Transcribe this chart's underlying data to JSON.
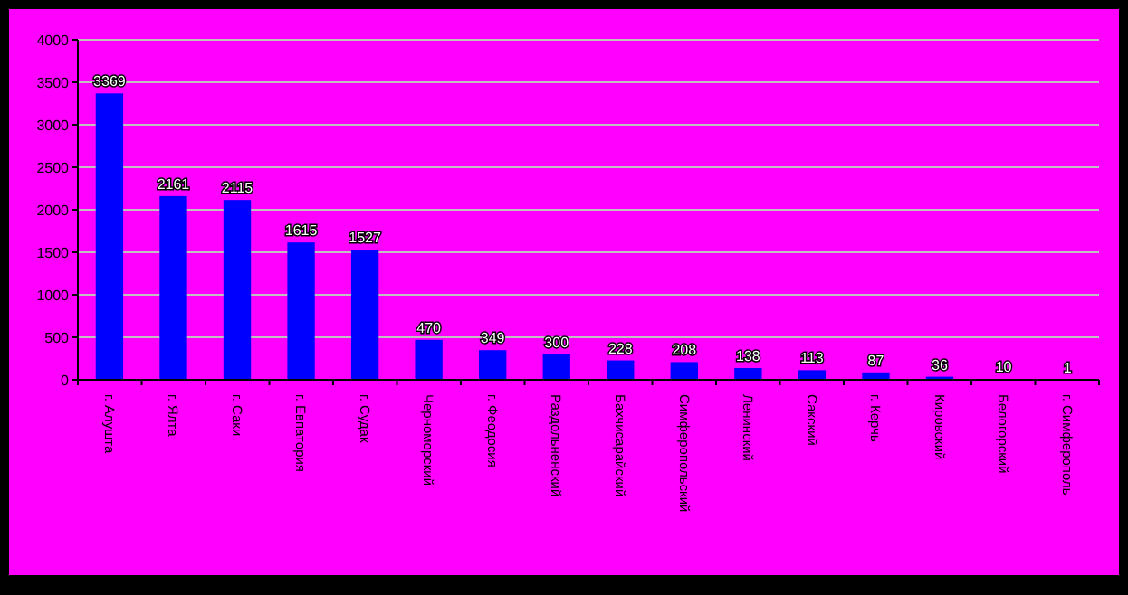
{
  "chart_data": {
    "type": "bar",
    "categories": [
      "г. Алушта",
      "г. Ялта",
      "г. Саки",
      "г. Евпатория",
      "г. Судак",
      "Черноморский",
      "г. Феодосия",
      "Раздольненский",
      "Бахчисарайский",
      "Симферопольский",
      "Ленинский",
      "Сакский",
      "г. Керчь",
      "Кировский",
      "Белогорский",
      "г. Симферополь"
    ],
    "values": [
      3369,
      2161,
      2115,
      1615,
      1527,
      470,
      349,
      300,
      228,
      208,
      138,
      113,
      87,
      36,
      10,
      1
    ],
    "color": "#0000ff",
    "ylim": [
      0,
      4000
    ],
    "yticks": [
      0,
      500,
      1000,
      1500,
      2000,
      2500,
      3000,
      3500,
      4000
    ],
    "grid": "y",
    "data_labels": true
  }
}
